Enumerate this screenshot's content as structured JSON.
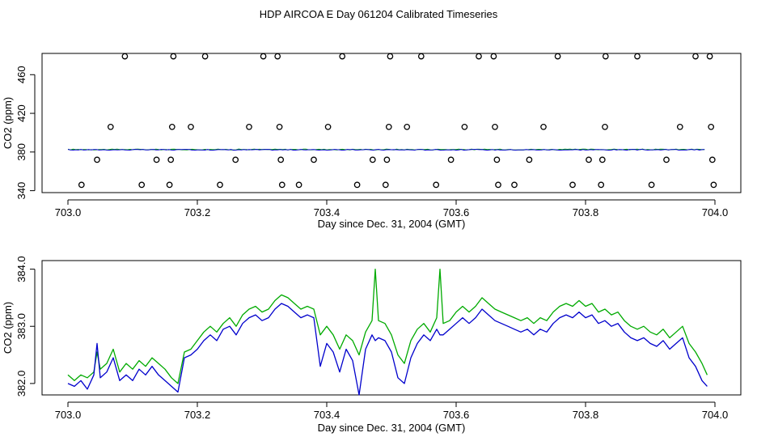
{
  "page": {
    "title": "HDP AIRCOA E  Day 061204  Calibrated Timeseries"
  },
  "chart_data": [
    {
      "type": "scatter+line",
      "xlabel": "Day since Dec. 31, 2004 (GMT)",
      "ylabel": "CO2 (ppm)",
      "xlim": [
        702.96,
        704.04
      ],
      "ylim": [
        338,
        482
      ],
      "xticks": [
        703.0,
        703.2,
        703.4,
        703.6,
        703.8,
        704.0
      ],
      "xtick_labels": [
        "703.0",
        "703.2",
        "703.4",
        "703.6",
        "703.8",
        "704.0"
      ],
      "yticks": [
        340,
        380,
        420,
        460
      ],
      "ytick_labels": [
        "340",
        "380",
        "420",
        "460"
      ],
      "grid": false,
      "legend": "none",
      "colors": {
        "line_blue": "#0000cc",
        "line_green": "#00aa00",
        "points": "#000000"
      },
      "calibration_points": [
        {
          "x": 703.088,
          "y": 479
        },
        {
          "x": 703.163,
          "y": 479
        },
        {
          "x": 703.212,
          "y": 479
        },
        {
          "x": 703.302,
          "y": 479
        },
        {
          "x": 703.324,
          "y": 479
        },
        {
          "x": 703.424,
          "y": 479
        },
        {
          "x": 703.498,
          "y": 479
        },
        {
          "x": 703.546,
          "y": 479
        },
        {
          "x": 703.635,
          "y": 479
        },
        {
          "x": 703.658,
          "y": 479
        },
        {
          "x": 703.757,
          "y": 479
        },
        {
          "x": 703.831,
          "y": 479
        },
        {
          "x": 703.88,
          "y": 479
        },
        {
          "x": 703.97,
          "y": 479
        },
        {
          "x": 703.992,
          "y": 479
        },
        {
          "x": 703.066,
          "y": 406
        },
        {
          "x": 703.161,
          "y": 406
        },
        {
          "x": 703.19,
          "y": 406
        },
        {
          "x": 703.28,
          "y": 406
        },
        {
          "x": 703.327,
          "y": 406
        },
        {
          "x": 703.402,
          "y": 406
        },
        {
          "x": 703.496,
          "y": 406
        },
        {
          "x": 703.524,
          "y": 406
        },
        {
          "x": 703.613,
          "y": 406
        },
        {
          "x": 703.66,
          "y": 406
        },
        {
          "x": 703.735,
          "y": 406
        },
        {
          "x": 703.83,
          "y": 406
        },
        {
          "x": 703.946,
          "y": 406
        },
        {
          "x": 703.994,
          "y": 406
        },
        {
          "x": 703.045,
          "y": 372
        },
        {
          "x": 703.137,
          "y": 372
        },
        {
          "x": 703.159,
          "y": 372
        },
        {
          "x": 703.259,
          "y": 372
        },
        {
          "x": 703.329,
          "y": 372
        },
        {
          "x": 703.38,
          "y": 372
        },
        {
          "x": 703.471,
          "y": 372
        },
        {
          "x": 703.493,
          "y": 372
        },
        {
          "x": 703.592,
          "y": 372
        },
        {
          "x": 703.663,
          "y": 372
        },
        {
          "x": 703.713,
          "y": 372
        },
        {
          "x": 703.805,
          "y": 372
        },
        {
          "x": 703.826,
          "y": 372
        },
        {
          "x": 703.925,
          "y": 372
        },
        {
          "x": 703.996,
          "y": 372
        },
        {
          "x": 703.021,
          "y": 346
        },
        {
          "x": 703.114,
          "y": 346
        },
        {
          "x": 703.157,
          "y": 346
        },
        {
          "x": 703.235,
          "y": 346
        },
        {
          "x": 703.331,
          "y": 346
        },
        {
          "x": 703.357,
          "y": 346
        },
        {
          "x": 703.447,
          "y": 346
        },
        {
          "x": 703.491,
          "y": 346
        },
        {
          "x": 703.569,
          "y": 346
        },
        {
          "x": 703.665,
          "y": 346
        },
        {
          "x": 703.69,
          "y": 346
        },
        {
          "x": 703.78,
          "y": 346
        },
        {
          "x": 703.824,
          "y": 346
        },
        {
          "x": 703.902,
          "y": 346
        },
        {
          "x": 703.998,
          "y": 346
        }
      ]
    },
    {
      "type": "line",
      "xlabel": "Day since Dec. 31, 2004 (GMT)",
      "ylabel": "CO2 (ppm)",
      "xlim": [
        702.96,
        704.04
      ],
      "ylim": [
        381.8,
        384.15
      ],
      "xticks": [
        703.0,
        703.2,
        703.4,
        703.6,
        703.8,
        704.0
      ],
      "xtick_labels": [
        "703.0",
        "703.2",
        "703.4",
        "703.6",
        "703.8",
        "704.0"
      ],
      "yticks": [
        382.0,
        383.0,
        384.0
      ],
      "ytick_labels": [
        "382.0",
        "383.0",
        "384.0"
      ],
      "grid": false,
      "legend": "none",
      "series": [
        {
          "color": "#00aa00",
          "x": [
            703.0,
            703.01,
            703.02,
            703.03,
            703.04,
            703.045,
            703.05,
            703.06,
            703.07,
            703.08,
            703.09,
            703.1,
            703.11,
            703.12,
            703.13,
            703.14,
            703.15,
            703.16,
            703.17,
            703.18,
            703.19,
            703.2,
            703.21,
            703.22,
            703.23,
            703.24,
            703.25,
            703.26,
            703.27,
            703.28,
            703.29,
            703.3,
            703.31,
            703.32,
            703.33,
            703.34,
            703.35,
            703.36,
            703.37,
            703.38,
            703.39,
            703.4,
            703.41,
            703.42,
            703.43,
            703.44,
            703.45,
            703.46,
            703.47,
            703.475,
            703.48,
            703.49,
            703.5,
            703.51,
            703.52,
            703.53,
            703.54,
            703.55,
            703.56,
            703.57,
            703.575,
            703.58,
            703.59,
            703.6,
            703.61,
            703.62,
            703.63,
            703.64,
            703.65,
            703.66,
            703.67,
            703.68,
            703.69,
            703.7,
            703.71,
            703.72,
            703.73,
            703.74,
            703.75,
            703.76,
            703.77,
            703.78,
            703.79,
            703.8,
            703.81,
            703.82,
            703.83,
            703.84,
            703.85,
            703.86,
            703.87,
            703.88,
            703.89,
            703.9,
            703.91,
            703.92,
            703.93,
            703.94,
            703.95,
            703.96,
            703.97,
            703.98,
            703.988
          ],
          "values": [
            382.15,
            382.05,
            382.15,
            382.1,
            382.2,
            382.55,
            382.25,
            382.35,
            382.6,
            382.2,
            382.35,
            382.25,
            382.4,
            382.3,
            382.45,
            382.35,
            382.25,
            382.1,
            382.0,
            382.55,
            382.6,
            382.75,
            382.9,
            383.0,
            382.9,
            383.05,
            383.15,
            383.0,
            383.2,
            383.3,
            383.35,
            383.25,
            383.3,
            383.45,
            383.55,
            383.5,
            383.4,
            383.3,
            383.35,
            383.3,
            382.85,
            383.0,
            382.85,
            382.6,
            382.85,
            382.75,
            382.5,
            382.9,
            383.1,
            384.0,
            383.1,
            383.05,
            382.85,
            382.5,
            382.35,
            382.75,
            382.95,
            383.05,
            382.9,
            383.15,
            384.0,
            383.05,
            383.1,
            383.25,
            383.35,
            383.25,
            383.35,
            383.5,
            383.4,
            383.3,
            383.25,
            383.2,
            383.15,
            383.1,
            383.15,
            383.05,
            383.15,
            383.1,
            383.25,
            383.35,
            383.4,
            383.35,
            383.45,
            383.35,
            383.4,
            383.25,
            383.3,
            383.2,
            383.25,
            383.1,
            383.0,
            382.95,
            383.0,
            382.9,
            382.85,
            382.95,
            382.8,
            382.9,
            383.0,
            382.7,
            382.55,
            382.35,
            382.15
          ]
        },
        {
          "color": "#0000cc",
          "x": [
            703.0,
            703.01,
            703.02,
            703.03,
            703.04,
            703.045,
            703.05,
            703.06,
            703.07,
            703.08,
            703.09,
            703.1,
            703.11,
            703.12,
            703.13,
            703.14,
            703.15,
            703.16,
            703.17,
            703.18,
            703.19,
            703.2,
            703.21,
            703.22,
            703.23,
            703.24,
            703.25,
            703.26,
            703.27,
            703.28,
            703.29,
            703.3,
            703.31,
            703.32,
            703.33,
            703.34,
            703.35,
            703.36,
            703.37,
            703.38,
            703.39,
            703.4,
            703.41,
            703.42,
            703.43,
            703.44,
            703.45,
            703.46,
            703.47,
            703.475,
            703.48,
            703.49,
            703.5,
            703.51,
            703.52,
            703.53,
            703.54,
            703.55,
            703.56,
            703.57,
            703.575,
            703.58,
            703.59,
            703.6,
            703.61,
            703.62,
            703.63,
            703.64,
            703.65,
            703.66,
            703.67,
            703.68,
            703.69,
            703.7,
            703.71,
            703.72,
            703.73,
            703.74,
            703.75,
            703.76,
            703.77,
            703.78,
            703.79,
            703.8,
            703.81,
            703.82,
            703.83,
            703.84,
            703.85,
            703.86,
            703.87,
            703.88,
            703.89,
            703.9,
            703.91,
            703.92,
            703.93,
            703.94,
            703.95,
            703.96,
            703.97,
            703.98,
            703.988
          ],
          "values": [
            382.0,
            381.95,
            382.05,
            381.9,
            382.15,
            382.7,
            382.1,
            382.2,
            382.45,
            382.05,
            382.15,
            382.05,
            382.25,
            382.15,
            382.3,
            382.15,
            382.05,
            381.95,
            381.85,
            382.45,
            382.5,
            382.6,
            382.75,
            382.85,
            382.75,
            382.95,
            383.0,
            382.85,
            383.05,
            383.15,
            383.2,
            383.1,
            383.15,
            383.3,
            383.4,
            383.35,
            383.25,
            383.15,
            383.2,
            383.15,
            382.3,
            382.7,
            382.55,
            382.2,
            382.6,
            382.4,
            381.8,
            382.6,
            382.85,
            382.75,
            382.8,
            382.75,
            382.55,
            382.1,
            382.0,
            382.45,
            382.7,
            382.85,
            382.75,
            382.95,
            382.85,
            382.85,
            382.95,
            383.05,
            383.15,
            383.05,
            383.15,
            383.3,
            383.2,
            383.1,
            383.05,
            383.0,
            382.95,
            382.9,
            382.95,
            382.85,
            382.95,
            382.9,
            383.05,
            383.15,
            383.2,
            383.15,
            383.25,
            383.15,
            383.2,
            383.05,
            383.1,
            383.0,
            383.05,
            382.9,
            382.8,
            382.75,
            382.8,
            382.7,
            382.65,
            382.75,
            382.6,
            382.7,
            382.8,
            382.45,
            382.3,
            382.05,
            381.95
          ]
        }
      ]
    }
  ]
}
